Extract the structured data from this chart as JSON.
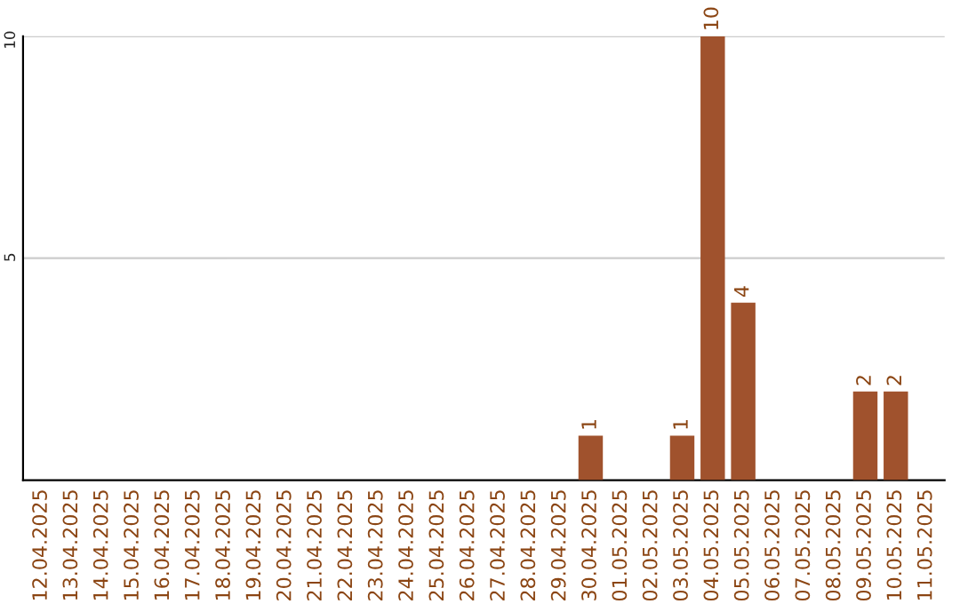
{
  "chart_data": {
    "type": "bar",
    "categories": [
      "12.04.2025",
      "13.04.2025",
      "14.04.2025",
      "15.04.2025",
      "16.04.2025",
      "17.04.2025",
      "18.04.2025",
      "19.04.2025",
      "20.04.2025",
      "21.04.2025",
      "22.04.2025",
      "23.04.2025",
      "24.04.2025",
      "25.04.2025",
      "26.04.2025",
      "27.04.2025",
      "28.04.2025",
      "29.04.2025",
      "30.04.2025",
      "01.05.2025",
      "02.05.2025",
      "03.05.2025",
      "04.05.2025",
      "05.05.2025",
      "06.05.2025",
      "07.05.2025",
      "08.05.2025",
      "09.05.2025",
      "10.05.2025",
      "11.05.2025"
    ],
    "values": [
      0,
      0,
      0,
      0,
      0,
      0,
      0,
      0,
      0,
      0,
      0,
      0,
      0,
      0,
      0,
      0,
      0,
      0,
      1,
      0,
      0,
      1,
      10,
      4,
      0,
      0,
      0,
      2,
      2,
      0
    ],
    "value_labels": [
      null,
      null,
      null,
      null,
      null,
      null,
      null,
      null,
      null,
      null,
      null,
      null,
      null,
      null,
      null,
      null,
      null,
      null,
      "1",
      null,
      null,
      "1",
      "10",
      "4",
      null,
      null,
      null,
      "2",
      "2",
      null
    ],
    "color": "#a0522d",
    "ylim": [
      0,
      10
    ],
    "yticks": [
      5,
      10
    ],
    "grid": "y"
  }
}
